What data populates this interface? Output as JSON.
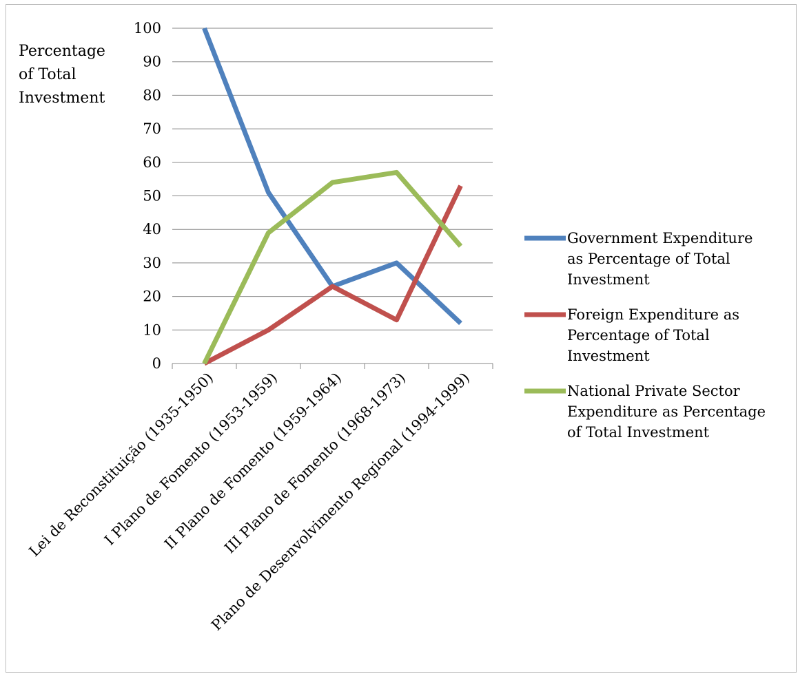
{
  "chart_data": {
    "type": "line",
    "title": "",
    "xlabel": "",
    "ylabel": [
      "Percentage",
      "of Total",
      "Investment"
    ],
    "ylim": [
      0,
      100
    ],
    "yticks": [
      "0",
      "10",
      "20",
      "30",
      "40",
      "50",
      "60",
      "70",
      "80",
      "90",
      "100"
    ],
    "grid": true,
    "legend_position": "right",
    "categories": [
      "Lei de Reconstituição (1935-1950)",
      "I Plano de Fomento (1953-1959)",
      "II Plano de Fomento (1959-1964)",
      "III Plano de Fomento (1968-1973)",
      "Plano de Desenvolvimento Regional (1994-1999)"
    ],
    "series": [
      {
        "name": "Government Expenditure as Percentage of Total Investment",
        "legend_lines": [
          "Government Expenditure",
          "as Percentage of Total",
          "Investment"
        ],
        "color": "#4f81bd",
        "values": [
          100,
          51,
          23,
          30,
          12
        ]
      },
      {
        "name": "Foreign Expenditure as Percentage of Total Investment",
        "legend_lines": [
          "Foreign Expenditure as",
          "Percentage of Total",
          "Investment"
        ],
        "color": "#c0504d",
        "values": [
          0,
          10,
          23,
          13,
          53
        ]
      },
      {
        "name": "National Private Sector Expenditure as Percentage of Total Investment",
        "legend_lines": [
          "National Private Sector",
          "Expenditure as Percentage",
          "of Total Investment"
        ],
        "color": "#9bbb59",
        "values": [
          0,
          39,
          54,
          57,
          35
        ]
      }
    ]
  }
}
